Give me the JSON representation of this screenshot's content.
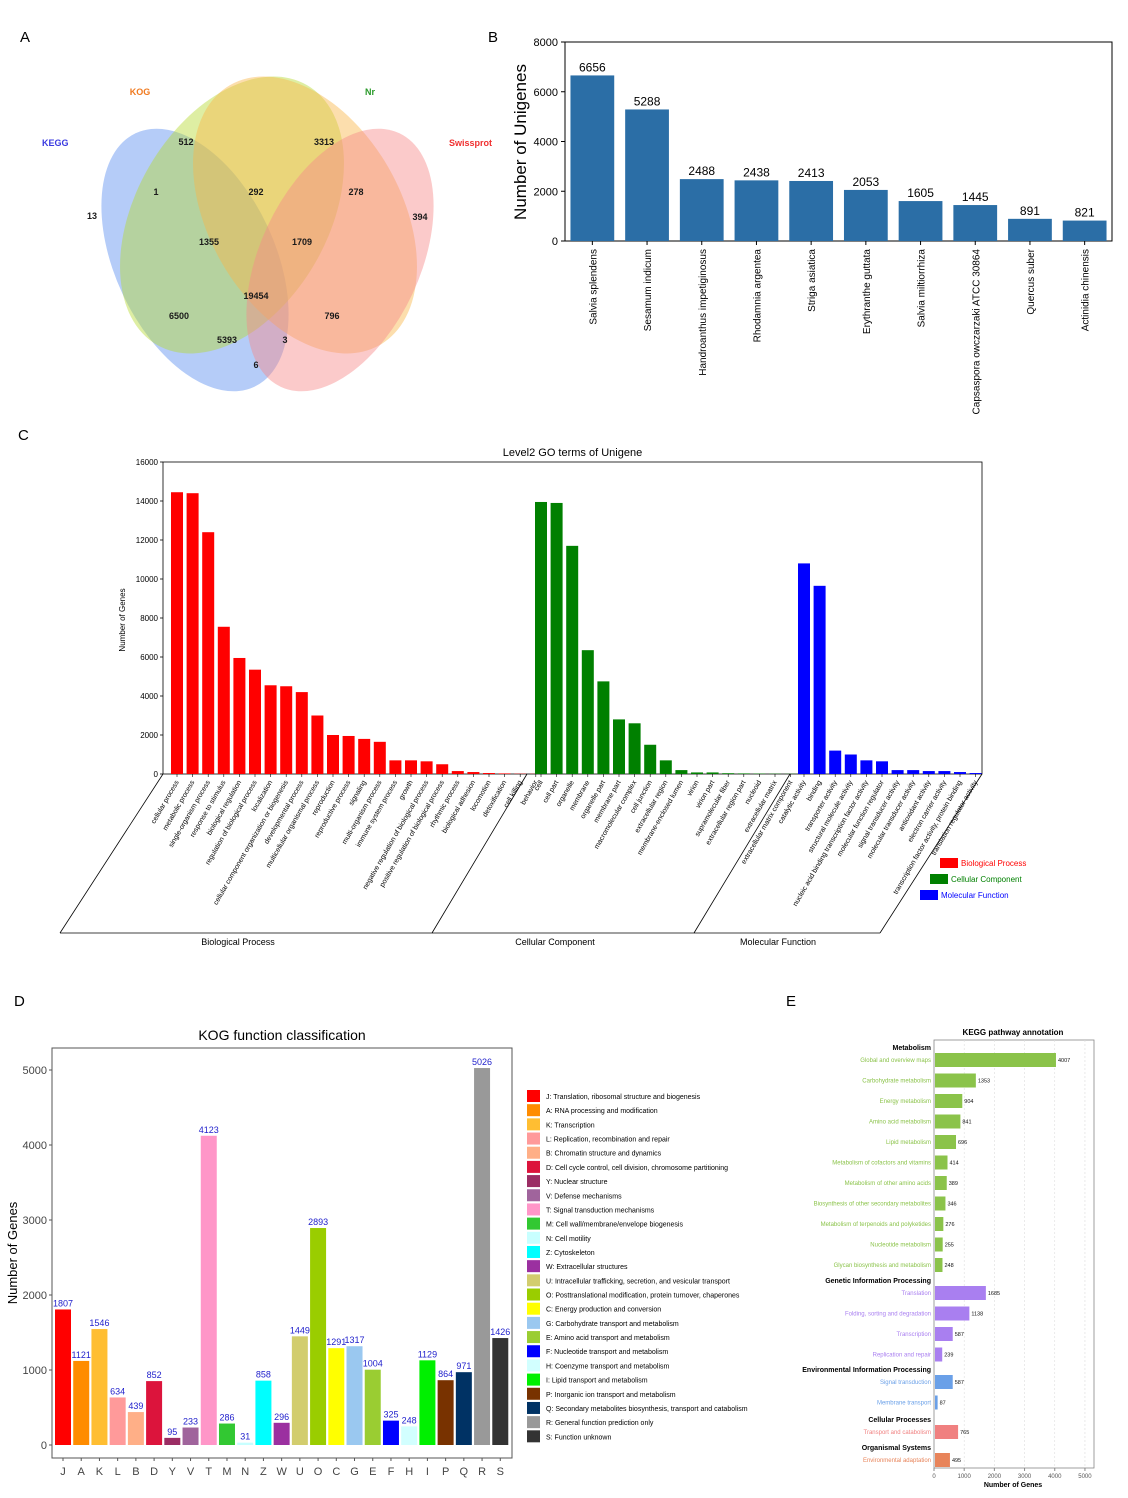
{
  "panel_labels": {
    "a": "A",
    "b": "B",
    "c": "C",
    "d": "D",
    "e": "E"
  },
  "chart_data": [
    {
      "id": "venn",
      "type": "venn",
      "sets": [
        {
          "name": "KEGG",
          "color": "#5b8ff0"
        },
        {
          "name": "KOG",
          "color": "#b5d933"
        },
        {
          "name": "Nr",
          "color": "#f9b64a"
        },
        {
          "name": "Swissprot",
          "color": "#f78a8a"
        }
      ],
      "set_label_colors": [
        "#3a3ae0",
        "#f07a20",
        "#2a9a2a",
        "#f03030"
      ],
      "regions": [
        {
          "sets": [
            "KEGG"
          ],
          "value": 13
        },
        {
          "sets": [
            "KOG"
          ],
          "value": 512
        },
        {
          "sets": [
            "Nr"
          ],
          "value": 3313
        },
        {
          "sets": [
            "Swissprot"
          ],
          "value": 394
        },
        {
          "sets": [
            "KEGG",
            "KOG"
          ],
          "value": 1
        },
        {
          "sets": [
            "KOG",
            "Nr"
          ],
          "value": 292
        },
        {
          "sets": [
            "Nr",
            "Swissprot"
          ],
          "value": 278
        },
        {
          "sets": [
            "KEGG",
            "KOG",
            "Nr"
          ],
          "value": 1355
        },
        {
          "sets": [
            "KOG",
            "Nr",
            "Swissprot"
          ],
          "value": 1709
        },
        {
          "sets": [
            "KEGG",
            "KOG",
            "Nr",
            "Swissprot"
          ],
          "value": 19454
        },
        {
          "sets": [
            "KEGG",
            "Nr"
          ],
          "value": 6500
        },
        {
          "sets": [
            "KEGG",
            "Nr",
            "Swissprot"
          ],
          "value": 5393
        },
        {
          "sets": [
            "KEGG",
            "KOG",
            "Swissprot"
          ],
          "value": 3
        },
        {
          "sets": [
            "KOG",
            "Swissprot"
          ],
          "value": 796
        },
        {
          "sets": [
            "KEGG",
            "Swissprot"
          ],
          "value": 6
        }
      ]
    },
    {
      "id": "species",
      "type": "bar",
      "ylabel": "Number of Unigenes",
      "ylim": [
        0,
        8000
      ],
      "yticks": [
        0,
        2000,
        4000,
        6000,
        8000
      ],
      "color": "#2b6ea6",
      "categories": [
        "Salvia splendens",
        "Sesamum indicum",
        "Handroanthus impetiginosus",
        "Rhodamnia argentea",
        "Striga asiatica",
        "Erythranthe guttata",
        "Salvia miltiorrhiza",
        "Capsaspora owczarzaki ATCC 30864",
        "Quercus suber",
        "Actinidia chinensis"
      ],
      "values": [
        6656,
        5288,
        2488,
        2438,
        2413,
        2053,
        1605,
        1445,
        891,
        821
      ]
    },
    {
      "id": "go",
      "type": "bar",
      "title": "Level2 GO terms of Unigene",
      "ylabel": "Number of Genes",
      "ylim": [
        0,
        16000
      ],
      "yticks": [
        0,
        2000,
        4000,
        6000,
        8000,
        10000,
        12000,
        14000,
        16000
      ],
      "groups": [
        {
          "name": "Biological Process",
          "color": "#ff0000",
          "categories": [
            "cellular process",
            "metabolic process",
            "single-organism process",
            "response to stimulus",
            "biological regulation",
            "regulation of biological process",
            "localization",
            "cellular component organization or biogenesis",
            "developmental process",
            "multicellular organismal process",
            "reproduction",
            "reproductive process",
            "signaling",
            "multi-organism process",
            "immune system process",
            "growth",
            "negative regulation of biological process",
            "positive regulation of biological process",
            "rhythmic process",
            "biological adhesion",
            "locomotion",
            "detoxification",
            "cell killing",
            "behavior"
          ],
          "values": [
            14450,
            14400,
            12400,
            7550,
            5950,
            5350,
            4550,
            4500,
            4200,
            3000,
            2000,
            1950,
            1800,
            1650,
            700,
            700,
            650,
            500,
            150,
            100,
            50,
            30,
            15,
            10
          ]
        },
        {
          "name": "Cellular Component",
          "color": "#008000",
          "categories": [
            "cell",
            "cell part",
            "organelle",
            "membrane",
            "organelle part",
            "membrane part",
            "macromolecular complex",
            "cell junction",
            "extracellular region",
            "membrane-enclosed lumen",
            "virion",
            "virion part",
            "supramolecular fiber",
            "extracellular region part",
            "nucleoid",
            "extracellular matrix",
            "extracellular matrix component"
          ],
          "values": [
            13950,
            13900,
            11700,
            6350,
            4750,
            2800,
            2600,
            1500,
            700,
            200,
            80,
            80,
            40,
            30,
            20,
            15,
            10
          ]
        },
        {
          "name": "Molecular Function",
          "color": "#0000ff",
          "categories": [
            "catalytic activity",
            "binding",
            "transporter activity",
            "structural molecule activity",
            "nucleic acid binding transcription factor activity",
            "molecular function regulator",
            "signal transducer activity",
            "molecular transducer activity",
            "antioxidant activity",
            "electron carrier activity",
            "transcription factor activity, protein binding",
            "translation regulator activity"
          ],
          "values": [
            10800,
            9650,
            1200,
            1000,
            700,
            650,
            200,
            200,
            150,
            150,
            100,
            50
          ]
        }
      ],
      "legend": [
        "Biological Process",
        "Cellular Component",
        "Molecular Function"
      ],
      "legend_position": "right"
    },
    {
      "id": "kog",
      "type": "bar",
      "title": "KOG function classification",
      "ylabel": "Number of Genes",
      "ylim": [
        0,
        5200
      ],
      "yticks": [
        0,
        1000,
        2000,
        3000,
        4000,
        5000
      ],
      "categories": [
        "J",
        "A",
        "K",
        "L",
        "B",
        "D",
        "Y",
        "V",
        "T",
        "M",
        "N",
        "Z",
        "W",
        "U",
        "O",
        "C",
        "G",
        "E",
        "F",
        "H",
        "I",
        "P",
        "Q",
        "R",
        "S"
      ],
      "values": [
        1807,
        1121,
        1546,
        634,
        439,
        852,
        95,
        233,
        4123,
        286,
        31,
        858,
        296,
        1449,
        2893,
        1291,
        1317,
        1004,
        325,
        248,
        1129,
        864,
        971,
        5026,
        1426
      ],
      "colors": [
        "#ff0000",
        "#ff8c00",
        "#ffbe32",
        "#ff9a9a",
        "#ffaf87",
        "#dc143c",
        "#9b2d64",
        "#a0649c",
        "#ff96c8",
        "#32c832",
        "#c8ffff",
        "#00ffff",
        "#9b30a0",
        "#d2cd6e",
        "#9acd00",
        "#ffff00",
        "#9ac8f0",
        "#9acd32",
        "#0000ff",
        "#d2ffff",
        "#00f000",
        "#783200",
        "#003264",
        "#999999",
        "#333333"
      ],
      "legend": [
        "J: Translation, ribosomal structure and biogenesis",
        "A: RNA processing and modification",
        "K: Transcription",
        "L: Replication, recombination and repair",
        "B: Chromatin structure and dynamics",
        "D: Cell cycle control, cell division, chromosome partitioning",
        "Y: Nuclear structure",
        "V: Defense mechanisms",
        "T: Signal transduction mechanisms",
        "M: Cell wall/membrane/envelope biogenesis",
        "N: Cell motility",
        "Z: Cytoskeleton",
        "W: Extracellular structures",
        "U: Intracellular trafficking, secretion, and vesicular transport",
        "O: Posttranslational modification, protein turnover, chaperones",
        "C: Energy production and conversion",
        "G: Carbohydrate transport and metabolism",
        "E: Amino acid transport and metabolism",
        "F: Nucleotide transport and metabolism",
        "H: Coenzyme transport and metabolism",
        "I: Lipid transport and metabolism",
        "P: Inorganic ion transport and metabolism",
        "Q: Secondary metabolites biosynthesis, transport and catabolism",
        "R: General function prediction only",
        "S: Function unknown"
      ],
      "legend_position": "right"
    },
    {
      "id": "kegg",
      "type": "bar",
      "orientation": "horizontal",
      "title": "KEGG pathway annotation",
      "xlabel": "Number of Genes",
      "xlim": [
        0,
        5300
      ],
      "xticks": [
        0,
        1000,
        2000,
        3000,
        4000,
        5000
      ],
      "grid": true,
      "groups": [
        {
          "name": "Metabolism",
          "color": "#8bc34a",
          "items": [
            {
              "label": "Global and overview maps",
              "value": 4007
            },
            {
              "label": "Carbohydrate metabolism",
              "value": 1353
            },
            {
              "label": "Energy metabolism",
              "value": 904
            },
            {
              "label": "Amino acid metabolism",
              "value": 841
            },
            {
              "label": "Lipid metabolism",
              "value": 696
            },
            {
              "label": "Metabolism of cofactors and vitamins",
              "value": 414
            },
            {
              "label": "Metabolism of other amino acids",
              "value": 389
            },
            {
              "label": "Biosynthesis of other secondary metabolites",
              "value": 346
            },
            {
              "label": "Metabolism of terpenoids and polyketides",
              "value": 276
            },
            {
              "label": "Nucleotide metabolism",
              "value": 255
            },
            {
              "label": "Glycan biosynthesis and metabolism",
              "value": 248
            }
          ]
        },
        {
          "name": "Genetic Information Processing",
          "color": "#a97ff0",
          "items": [
            {
              "label": "Translation",
              "value": 1685
            },
            {
              "label": "Folding, sorting and degradation",
              "value": 1138
            },
            {
              "label": "Transcription",
              "value": 587
            },
            {
              "label": "Replication and repair",
              "value": 239
            }
          ]
        },
        {
          "name": "Environmental Information Processing",
          "color": "#6aa0e8",
          "items": [
            {
              "label": "Signal transduction",
              "value": 587
            },
            {
              "label": "Membrane transport",
              "value": 87
            }
          ]
        },
        {
          "name": "Cellular Processes",
          "color": "#f08080",
          "items": [
            {
              "label": "Transport and catabolism",
              "value": 765
            }
          ]
        },
        {
          "name": "Organismal Systems",
          "color": "#e8845a",
          "items": [
            {
              "label": "Environmental adaptation",
              "value": 495
            }
          ]
        }
      ]
    }
  ]
}
